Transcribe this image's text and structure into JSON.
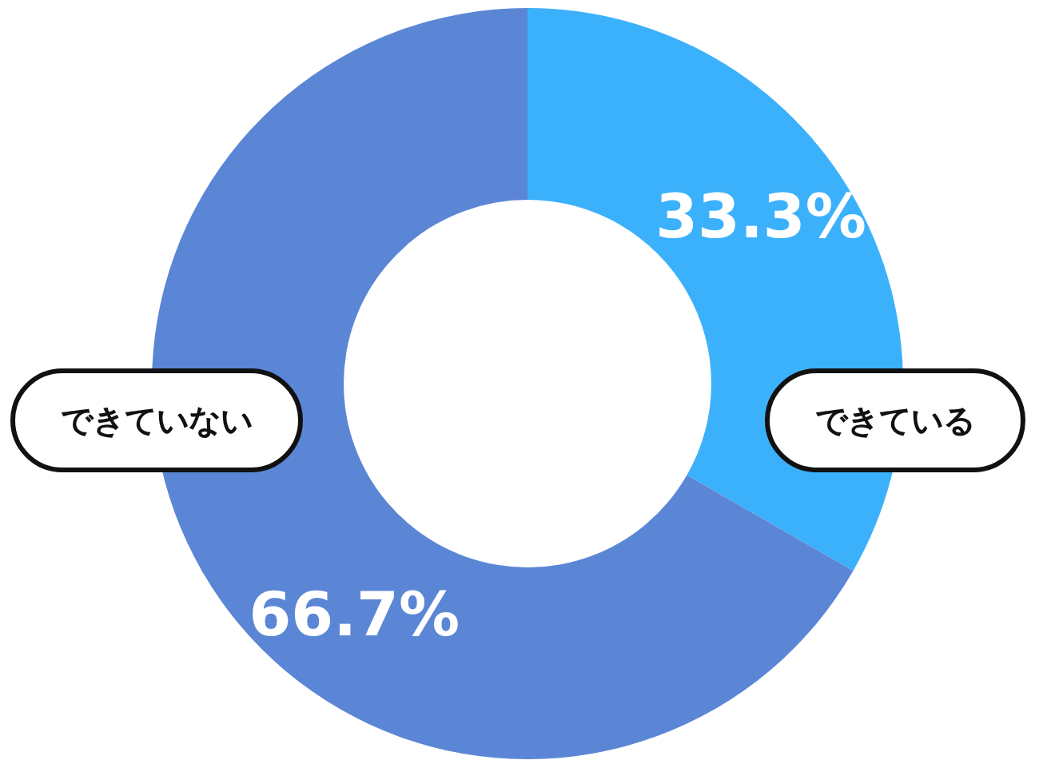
{
  "chart_data": {
    "type": "donut",
    "categories": [
      "できている",
      "できていない"
    ],
    "values": [
      33.3,
      66.7
    ],
    "colors": [
      "#3cb1fb",
      "#5b86d6"
    ],
    "value_labels": [
      "33.3%",
      "66.7%"
    ]
  }
}
